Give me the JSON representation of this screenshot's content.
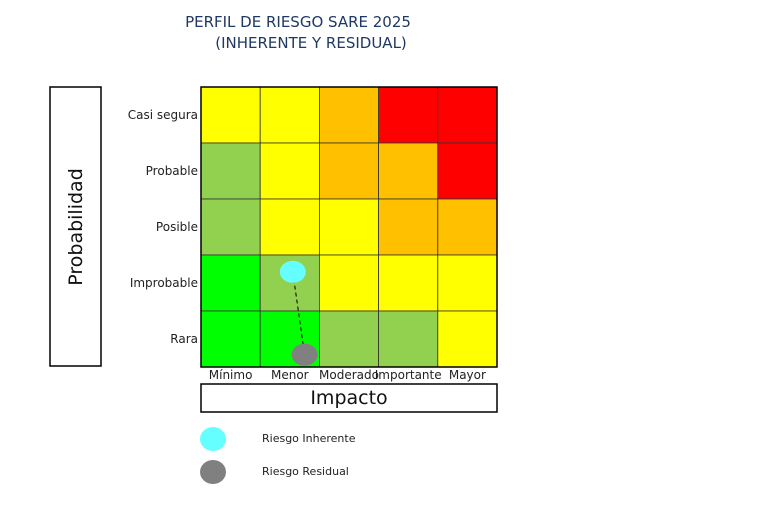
{
  "chart_data": {
    "type": "heatmap",
    "title": "PERFIL DE RIESGO SARE 2025",
    "subtitle": "(INHERENTE Y RESIDUAL)",
    "ylabel": "Probabilidad",
    "xlabel": "Impacto",
    "y_categories": [
      "Casi segura",
      "Probable",
      "Posible",
      "Improbable",
      "Rara"
    ],
    "x_categories": [
      "Mínimo",
      "Menor",
      "Moderado",
      "Importante",
      "Mayor"
    ],
    "cell_colors": [
      [
        "#ffff00",
        "#ffff00",
        "#ffc000",
        "#ff0000",
        "#ff0000"
      ],
      [
        "#92d050",
        "#ffff00",
        "#ffc000",
        "#ffc000",
        "#ff0000"
      ],
      [
        "#92d050",
        "#ffff00",
        "#ffff00",
        "#ffc000",
        "#ffc000"
      ],
      [
        "#00ff00",
        "#92d050",
        "#ffff00",
        "#ffff00",
        "#ffff00"
      ],
      [
        "#00ff00",
        "#00ff00",
        "#92d050",
        "#92d050",
        "#ffff00"
      ]
    ],
    "series": [
      {
        "name": "Riesgo Inherente",
        "color": "#66ffff",
        "x": "Menor",
        "y": "Improbable",
        "x_offset": 0.55,
        "y_offset": 0.3
      },
      {
        "name": "Riesgo Residual",
        "color": "#808080",
        "x": "Menor",
        "y": "Rara",
        "x_offset": 0.75,
        "y_offset": 0.78
      }
    ],
    "connector": {
      "from": "Riesgo Inherente",
      "to": "Riesgo Residual",
      "style": "dashed"
    }
  }
}
